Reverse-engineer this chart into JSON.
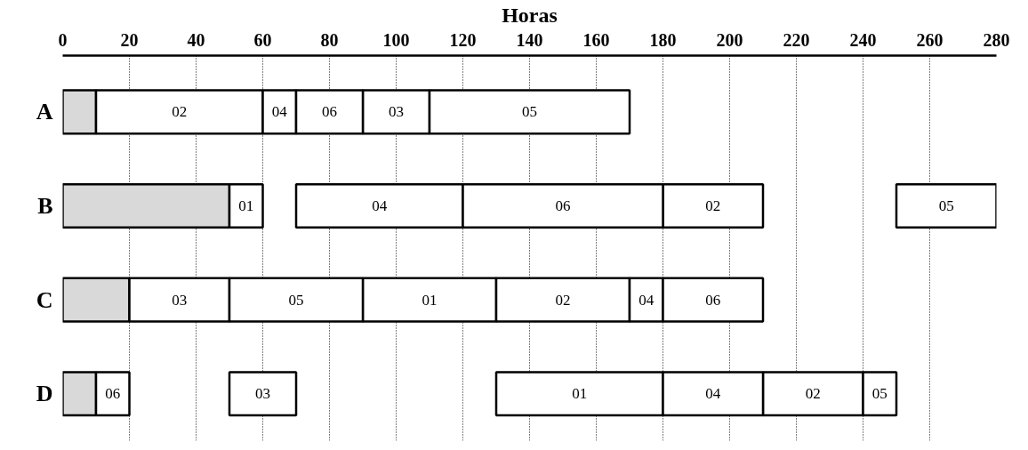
{
  "chart_data": {
    "type": "bar",
    "orientation": "horizontal",
    "xlabel": "Horas",
    "categories": [
      "A",
      "B",
      "C",
      "D"
    ],
    "xlim": [
      0,
      280
    ],
    "xticks": [
      0,
      20,
      40,
      60,
      80,
      100,
      120,
      140,
      160,
      180,
      200,
      220,
      240,
      260,
      280
    ],
    "grid": "x",
    "series": [
      {
        "color": "#d9d9d9",
        "base": [
          0,
          0,
          0,
          0
        ],
        "values": [
          10,
          50,
          20,
          10
        ]
      },
      {
        "name": "01",
        "color": "#ffffff",
        "base": [
          null,
          50,
          90,
          130
        ],
        "values": [
          null,
          10,
          40,
          50
        ]
      },
      {
        "name": "02",
        "color": "#ffffff",
        "base": [
          10,
          180,
          130,
          210
        ],
        "values": [
          50,
          30,
          40,
          30
        ]
      },
      {
        "name": "03",
        "color": "#ffffff",
        "base": [
          90,
          null,
          20,
          50
        ],
        "values": [
          20,
          null,
          30,
          20
        ]
      },
      {
        "name": "04",
        "color": "#ffffff",
        "base": [
          60,
          70,
          170,
          180
        ],
        "values": [
          10,
          50,
          10,
          30
        ]
      },
      {
        "name": "05",
        "color": "#ffffff",
        "base": [
          110,
          250,
          50,
          240
        ],
        "values": [
          60,
          30,
          40,
          10
        ]
      },
      {
        "name": "06",
        "color": "#ffffff",
        "base": [
          70,
          120,
          180,
          10
        ],
        "values": [
          20,
          60,
          30,
          10
        ]
      }
    ]
  }
}
